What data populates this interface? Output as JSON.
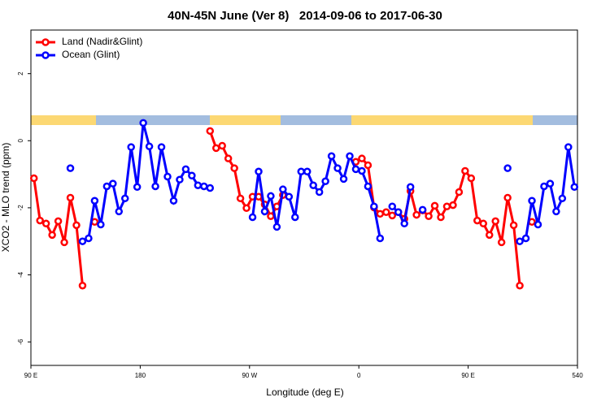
{
  "chart_data": {
    "type": "line",
    "title": "40N-45N June (Ver 8)   2014-09-06 to 2017-06-30",
    "x_label": "Longitude (deg E)",
    "y_label": "XCO2 - MLO trend (ppm)",
    "x": [
      92.5,
      97.5,
      102.5,
      107.5,
      112.5,
      117.5,
      122.5,
      127.5,
      132.5,
      137.5,
      142.5,
      147.5,
      152.5,
      157.5,
      162.5,
      167.5,
      172.5,
      177.5,
      182.5,
      187.5,
      192.5,
      197.5,
      202.5,
      207.5,
      212.5,
      217.5,
      222.5,
      227.5,
      232.5,
      237.5,
      242.5,
      247.5,
      252.5,
      257.5,
      262.5,
      267.5,
      272.5,
      277.5,
      282.5,
      287.5,
      292.5,
      297.5,
      302.5,
      307.5,
      312.5,
      317.5,
      322.5,
      327.5,
      332.5,
      337.5,
      342.5,
      347.5,
      352.5,
      357.5,
      362.5,
      367.5,
      372.5,
      377.5,
      382.5,
      387.5,
      392.5,
      397.5,
      402.5,
      407.5,
      412.5,
      417.5,
      422.5,
      427.5,
      432.5,
      437.5,
      442.5,
      447.5,
      452.5,
      457.5,
      462.5,
      467.5,
      472.5,
      477.5,
      482.5,
      487.5,
      492.5,
      497.5,
      502.5,
      507.5,
      512.5,
      517.5,
      522.5,
      527.5,
      532.5,
      537.5
    ],
    "series": [
      {
        "name": "Land (Nadir&Glint)",
        "color": "#ff0000",
        "values": [
          -1.12,
          -2.38,
          -2.47,
          -2.81,
          -2.4,
          -3.03,
          -1.7,
          -2.52,
          -4.32,
          null,
          -2.42,
          null,
          null,
          null,
          null,
          null,
          null,
          null,
          null,
          null,
          null,
          null,
          null,
          null,
          null,
          null,
          null,
          null,
          null,
          0.29,
          -0.22,
          -0.15,
          -0.53,
          -0.82,
          -1.72,
          -2.01,
          -1.67,
          -1.67,
          -1.9,
          -2.25,
          -1.96,
          -1.62,
          null,
          null,
          null,
          null,
          null,
          null,
          null,
          null,
          null,
          null,
          null,
          -0.63,
          -0.53,
          -0.73,
          -1.99,
          -2.18,
          -2.13,
          -2.23,
          -2.13,
          -2.33,
          -1.5,
          -2.21,
          -2.08,
          -2.25,
          -1.94,
          -2.28,
          -1.96,
          -1.92,
          -1.53,
          -0.9,
          -1.12,
          -2.38,
          -2.47,
          -2.81,
          -2.4,
          -3.03,
          -1.7,
          -2.52,
          -4.32,
          null,
          -2.42,
          null,
          null,
          null,
          null,
          null,
          null,
          null
        ]
      },
      {
        "name": "Ocean (Glint)",
        "color": "#0000ff",
        "values": [
          null,
          null,
          null,
          null,
          null,
          null,
          -0.82,
          null,
          -3.0,
          -2.91,
          -1.79,
          -2.5,
          -1.36,
          -1.28,
          -2.11,
          -1.72,
          -0.19,
          -1.38,
          0.53,
          -0.17,
          -1.36,
          -0.19,
          -1.07,
          -1.79,
          -1.16,
          -0.85,
          -1.04,
          -1.33,
          -1.36,
          -1.41,
          null,
          null,
          null,
          null,
          null,
          null,
          -2.28,
          -0.92,
          -2.11,
          -1.65,
          -2.57,
          -1.45,
          -1.67,
          -2.28,
          -0.92,
          -0.92,
          -1.33,
          -1.53,
          -1.21,
          -0.46,
          -0.82,
          -1.14,
          -0.46,
          -0.85,
          -0.9,
          -1.36,
          -1.96,
          -2.91,
          null,
          -1.96,
          -2.13,
          -2.47,
          -1.38,
          null,
          -2.06,
          null,
          null,
          null,
          null,
          null,
          null,
          null,
          null,
          null,
          null,
          null,
          null,
          null,
          -0.82,
          null,
          -3.0,
          -2.91,
          -1.79,
          -2.5,
          -1.36,
          -1.28,
          -2.11,
          -1.72,
          -0.19,
          -1.38
        ]
      }
    ],
    "xlim": [
      90,
      540
    ],
    "xticks": [
      {
        "value": 90,
        "label": "90 E"
      },
      180,
      {
        "value": 270,
        "label": "90 W"
      },
      {
        "value": 360,
        "label": "0"
      },
      {
        "value": 450,
        "label": "90 E"
      },
      540
    ],
    "ylim": [
      -6.7,
      3.3
    ],
    "yticks": [
      -6,
      -4,
      -2,
      0,
      2
    ],
    "legend": "top-left"
  }
}
